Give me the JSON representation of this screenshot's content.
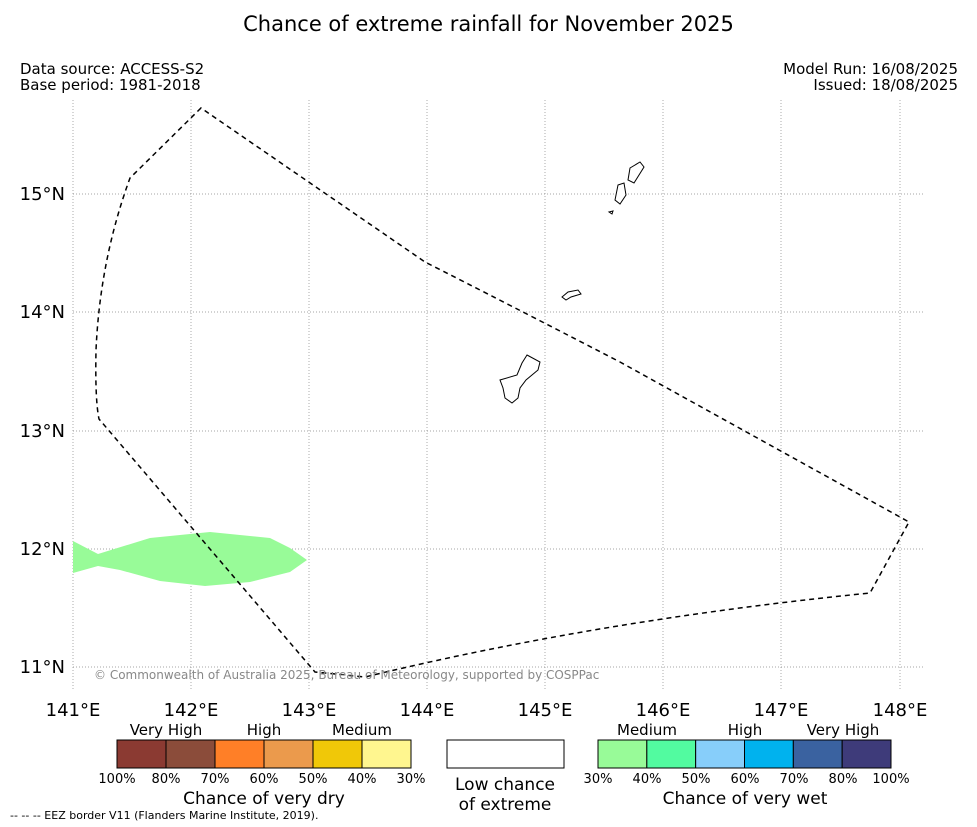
{
  "title": "Chance of extreme rainfall for November 2025",
  "header": {
    "data_source": "Data source: ACCESS-S2",
    "base_period": "Base period: 1981-2018",
    "model_run": "Model Run: 16/08/2025",
    "issued": "Issued: 18/08/2025"
  },
  "map": {
    "x_ticks": [
      "141°E",
      "142°E",
      "143°E",
      "144°E",
      "145°E",
      "146°E",
      "147°E",
      "148°E"
    ],
    "y_ticks": [
      "15°N",
      "14°N",
      "13°N",
      "12°N",
      "11°N"
    ],
    "copyright": "© Commonwealth of Australia 2025, Bureau of Meteorology, supported by COSPPac",
    "eez_color": "#000000",
    "wet_area_category": "Medium (30%-40%)",
    "wet_area_color": "#98fb98"
  },
  "legend": {
    "dry": {
      "headings": [
        "Very High",
        "High",
        "Medium"
      ],
      "colors": [
        "#8b3a32",
        "#8b4c3a",
        "#ff7f27",
        "#eb9a4c",
        "#f0c808",
        "#fff68f"
      ],
      "labels": [
        "100%",
        "80%",
        "70%",
        "60%",
        "50%",
        "40%",
        "30%"
      ],
      "caption": "Chance of very dry"
    },
    "low": {
      "caption_line1": "Low chance",
      "caption_line2": "of extreme",
      "color": "#ffffff"
    },
    "wet": {
      "headings": [
        "Medium",
        "High",
        "Very High"
      ],
      "colors": [
        "#98fb98",
        "#52fba0",
        "#87cefa",
        "#00b2ee",
        "#3a62a0",
        "#3e3b7a"
      ],
      "labels": [
        "30%",
        "40%",
        "50%",
        "60%",
        "70%",
        "80%",
        "100%"
      ],
      "caption": "Chance of very wet"
    }
  },
  "footnote": "--  --  -- EEZ border V11 (Flanders Marine Institute, 2019)."
}
